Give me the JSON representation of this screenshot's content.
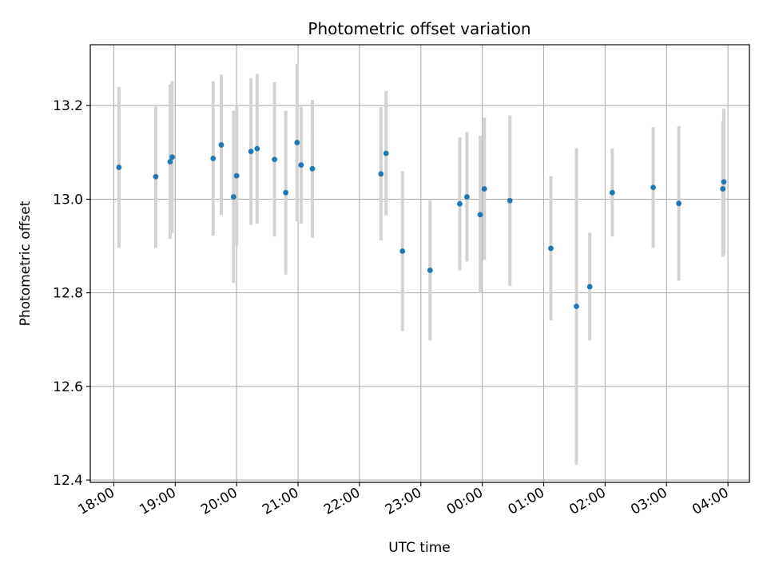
{
  "chart_data": {
    "type": "scatter",
    "title": "Photometric offset variation",
    "xlabel": "UTC time",
    "ylabel": "Photometric offset",
    "x_axis": {
      "kind": "time",
      "start": "18:00",
      "ticks": [
        "18:00",
        "19:00",
        "20:00",
        "21:00",
        "22:00",
        "23:00",
        "00:00",
        "01:00",
        "02:00",
        "03:00",
        "04:00"
      ],
      "range_minutes_since_18": [
        -23,
        621
      ]
    },
    "ylim": [
      12.395,
      13.33
    ],
    "yticks": [
      "12.4",
      "12.6",
      "12.8",
      "13.0",
      "13.2"
    ],
    "yticks_values": [
      12.4,
      12.6,
      12.8,
      13.0,
      13.2
    ],
    "grid": true,
    "colors": {
      "marker": "#1f77b4",
      "errorbar": "#d3d3d3",
      "grid": "#b0b0b0"
    },
    "points": [
      {
        "time": "18:05",
        "y": 13.068,
        "err": 0.172
      },
      {
        "time": "18:41",
        "y": 13.048,
        "err": 0.152
      },
      {
        "time": "18:55",
        "y": 13.08,
        "err": 0.165
      },
      {
        "time": "18:57",
        "y": 13.09,
        "err": 0.162
      },
      {
        "time": "19:37",
        "y": 13.087,
        "err": 0.165
      },
      {
        "time": "19:45",
        "y": 13.116,
        "err": 0.15
      },
      {
        "time": "19:57",
        "y": 13.005,
        "err": 0.184
      },
      {
        "time": "20:00",
        "y": 13.05,
        "err": 0.15
      },
      {
        "time": "20:14",
        "y": 13.102,
        "err": 0.157
      },
      {
        "time": "20:20",
        "y": 13.108,
        "err": 0.16
      },
      {
        "time": "20:37",
        "y": 13.085,
        "err": 0.165
      },
      {
        "time": "20:48",
        "y": 13.014,
        "err": 0.175
      },
      {
        "time": "20:59",
        "y": 13.121,
        "err": 0.168
      },
      {
        "time": "21:03",
        "y": 13.073,
        "err": 0.125
      },
      {
        "time": "21:14",
        "y": 13.065,
        "err": 0.147
      },
      {
        "time": "22:21",
        "y": 13.054,
        "err": 0.142
      },
      {
        "time": "22:26",
        "y": 13.098,
        "err": 0.133
      },
      {
        "time": "22:42",
        "y": 12.889,
        "err": 0.171
      },
      {
        "time": "23:09",
        "y": 12.848,
        "err": 0.15
      },
      {
        "time": "23:38",
        "y": 12.99,
        "err": 0.142
      },
      {
        "time": "23:45",
        "y": 13.005,
        "err": 0.138
      },
      {
        "time": "23:58",
        "y": 12.967,
        "err": 0.168
      },
      {
        "time": "00:02",
        "y": 13.022,
        "err": 0.152
      },
      {
        "time": "00:27",
        "y": 12.997,
        "err": 0.182
      },
      {
        "time": "01:07",
        "y": 12.895,
        "err": 0.154
      },
      {
        "time": "01:32",
        "y": 12.771,
        "err": 0.338
      },
      {
        "time": "01:45",
        "y": 12.813,
        "err": 0.115
      },
      {
        "time": "02:07",
        "y": 13.014,
        "err": 0.094
      },
      {
        "time": "02:47",
        "y": 13.025,
        "err": 0.129
      },
      {
        "time": "03:12",
        "y": 12.991,
        "err": 0.165
      },
      {
        "time": "03:55",
        "y": 13.022,
        "err": 0.145
      },
      {
        "time": "03:56",
        "y": 13.037,
        "err": 0.156
      }
    ]
  }
}
